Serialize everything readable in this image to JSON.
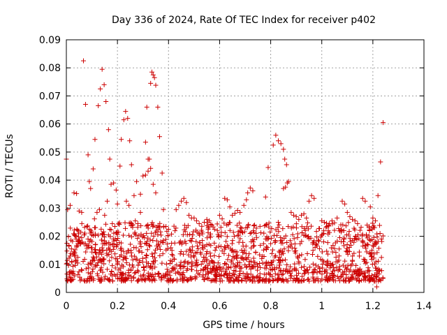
{
  "chart_data": {
    "type": "scatter",
    "title": "Day 336 of 2024, Rate Of TEC Index for receiver p402",
    "xlabel": "GPS time / hours",
    "ylabel": "ROTI / TECUs",
    "xlim": [
      0,
      1.4
    ],
    "ylim": [
      0,
      0.09
    ],
    "xticks": [
      0,
      0.2,
      0.4,
      0.6,
      0.8,
      1,
      1.2,
      1.4
    ],
    "xtick_labels": [
      "0",
      "0.2",
      "0.4",
      "0.6",
      "0.8",
      "1",
      "1.2",
      "1.4"
    ],
    "yticks": [
      0,
      0.01,
      0.02,
      0.03,
      0.04,
      0.05,
      0.06,
      0.07,
      0.08,
      0.09
    ],
    "ytick_labels": [
      "0",
      "0.01",
      "0.02",
      "0.03",
      "0.04",
      "0.05",
      "0.06",
      "0.07",
      "0.08",
      "0.09"
    ],
    "grid": true,
    "marker": "+",
    "color": "#cc0000",
    "series": [
      {
        "name": "p402",
        "points": [
          [
            0.0,
            0.0475
          ],
          [
            0.005,
            0.0295
          ],
          [
            0.015,
            0.031
          ],
          [
            0.03,
            0.0355
          ],
          [
            0.04,
            0.0352
          ],
          [
            0.05,
            0.029
          ],
          [
            0.06,
            0.0285
          ],
          [
            0.067,
            0.0825
          ],
          [
            0.075,
            0.067
          ],
          [
            0.085,
            0.049
          ],
          [
            0.09,
            0.0395
          ],
          [
            0.095,
            0.037
          ],
          [
            0.105,
            0.044
          ],
          [
            0.112,
            0.0545
          ],
          [
            0.125,
            0.0665
          ],
          [
            0.133,
            0.0725
          ],
          [
            0.14,
            0.0795
          ],
          [
            0.148,
            0.074
          ],
          [
            0.155,
            0.068
          ],
          [
            0.165,
            0.058
          ],
          [
            0.17,
            0.0475
          ],
          [
            0.175,
            0.0385
          ],
          [
            0.185,
            0.039
          ],
          [
            0.195,
            0.0365
          ],
          [
            0.21,
            0.045
          ],
          [
            0.215,
            0.0545
          ],
          [
            0.225,
            0.0615
          ],
          [
            0.232,
            0.0645
          ],
          [
            0.24,
            0.062
          ],
          [
            0.248,
            0.054
          ],
          [
            0.255,
            0.0455
          ],
          [
            0.265,
            0.0345
          ],
          [
            0.275,
            0.0395
          ],
          [
            0.29,
            0.035
          ],
          [
            0.3,
            0.0415
          ],
          [
            0.31,
            0.0535
          ],
          [
            0.315,
            0.066
          ],
          [
            0.32,
            0.0475
          ],
          [
            0.325,
            0.0475
          ],
          [
            0.33,
            0.0745
          ],
          [
            0.335,
            0.0785
          ],
          [
            0.34,
            0.0775
          ],
          [
            0.345,
            0.0765
          ],
          [
            0.35,
            0.0738
          ],
          [
            0.358,
            0.066
          ],
          [
            0.365,
            0.0555
          ],
          [
            0.375,
            0.0425
          ],
          [
            0.34,
            0.0385
          ],
          [
            0.35,
            0.0355
          ],
          [
            0.33,
            0.0442
          ],
          [
            0.32,
            0.0432
          ],
          [
            0.31,
            0.0418
          ],
          [
            0.235,
            0.0325
          ],
          [
            0.245,
            0.031
          ],
          [
            0.2,
            0.0315
          ],
          [
            0.81,
            0.0525
          ],
          [
            0.82,
            0.056
          ],
          [
            0.83,
            0.054
          ],
          [
            0.84,
            0.053
          ],
          [
            0.85,
            0.051
          ],
          [
            0.855,
            0.0475
          ],
          [
            0.862,
            0.0455
          ],
          [
            0.87,
            0.0395
          ],
          [
            0.865,
            0.039
          ],
          [
            0.858,
            0.0375
          ],
          [
            0.85,
            0.037
          ],
          [
            0.79,
            0.0445
          ],
          [
            0.78,
            0.034
          ],
          [
            1.22,
            0.0345
          ],
          [
            1.23,
            0.0465
          ],
          [
            1.24,
            0.0605
          ],
          [
            1.215,
            0.002
          ],
          [
            1.228,
            0.021
          ],
          [
            0.71,
            0.0355
          ],
          [
            0.72,
            0.0372
          ],
          [
            0.73,
            0.0362
          ],
          [
            0.705,
            0.033
          ],
          [
            0.695,
            0.031
          ],
          [
            0.44,
            0.031
          ],
          [
            0.45,
            0.0325
          ],
          [
            0.46,
            0.0335
          ],
          [
            0.47,
            0.032
          ],
          [
            0.43,
            0.0295
          ],
          [
            0.96,
            0.0345
          ],
          [
            0.97,
            0.0335
          ],
          [
            0.95,
            0.0325
          ],
          [
            1.08,
            0.0325
          ],
          [
            1.09,
            0.0315
          ],
          [
            1.16,
            0.0335
          ],
          [
            1.17,
            0.0325
          ],
          [
            1.19,
            0.0305
          ],
          [
            0.12,
            0.0285
          ],
          [
            0.13,
            0.0295
          ],
          [
            0.16,
            0.0325
          ],
          [
            0.15,
            0.0275
          ],
          [
            0.11,
            0.0262
          ],
          [
            0.38,
            0.0295
          ],
          [
            0.6,
            0.0275
          ],
          [
            0.61,
            0.0262
          ],
          [
            0.62,
            0.0335
          ],
          [
            0.63,
            0.033
          ],
          [
            0.64,
            0.0305
          ],
          [
            0.65,
            0.0275
          ],
          [
            0.66,
            0.0282
          ],
          [
            0.67,
            0.0292
          ],
          [
            0.68,
            0.0285
          ],
          [
            0.54,
            0.025
          ],
          [
            0.55,
            0.026
          ],
          [
            0.56,
            0.0255
          ],
          [
            0.57,
            0.024
          ],
          [
            0.58,
            0.0225
          ],
          [
            0.88,
            0.0285
          ],
          [
            0.89,
            0.0275
          ],
          [
            0.9,
            0.027
          ],
          [
            0.91,
            0.026
          ],
          [
            0.92,
            0.0275
          ],
          [
            0.93,
            0.028
          ],
          [
            0.94,
            0.0265
          ],
          [
            1.0,
            0.0255
          ],
          [
            1.01,
            0.025
          ],
          [
            1.02,
            0.0235
          ],
          [
            1.03,
            0.0245
          ],
          [
            1.04,
            0.0255
          ],
          [
            1.05,
            0.0248
          ],
          [
            1.06,
            0.0265
          ],
          [
            1.1,
            0.0285
          ],
          [
            1.11,
            0.027
          ],
          [
            1.12,
            0.026
          ],
          [
            1.13,
            0.0255
          ],
          [
            1.14,
            0.0245
          ],
          [
            1.2,
            0.0265
          ],
          [
            1.21,
            0.0255
          ],
          [
            0.5,
            0.0265
          ],
          [
            0.51,
            0.0255
          ],
          [
            0.52,
            0.0245
          ],
          [
            0.48,
            0.0275
          ],
          [
            0.49,
            0.0265
          ],
          [
            0.39,
            0.0235
          ],
          [
            0.4,
            0.0225
          ],
          [
            0.27,
            0.0255
          ],
          [
            0.28,
            0.0245
          ],
          [
            0.29,
            0.0285
          ],
          [
            0.255,
            0.0245
          ],
          [
            0.19,
            0.0235
          ],
          [
            0.18,
            0.0245
          ],
          [
            0.17,
            0.0225
          ],
          [
            0.08,
            0.0235
          ],
          [
            0.09,
            0.0225
          ],
          [
            0.1,
            0.0215
          ],
          [
            0.07,
            0.0205
          ],
          [
            0.06,
            0.0195
          ],
          [
            0.05,
            0.0185
          ],
          [
            0.2,
            0.0215
          ],
          [
            0.002,
            0.0175
          ],
          [
            0.01,
            0.0165
          ],
          [
            0.02,
            0.0155
          ],
          [
            0.03,
            0.0145
          ],
          [
            0.045,
            0.0125
          ]
        ]
      }
    ],
    "bands": [
      {
        "x_start": 0.0,
        "x_end": 1.24,
        "y_min": 0.004,
        "y_max": 0.025,
        "count": 1500
      }
    ]
  }
}
